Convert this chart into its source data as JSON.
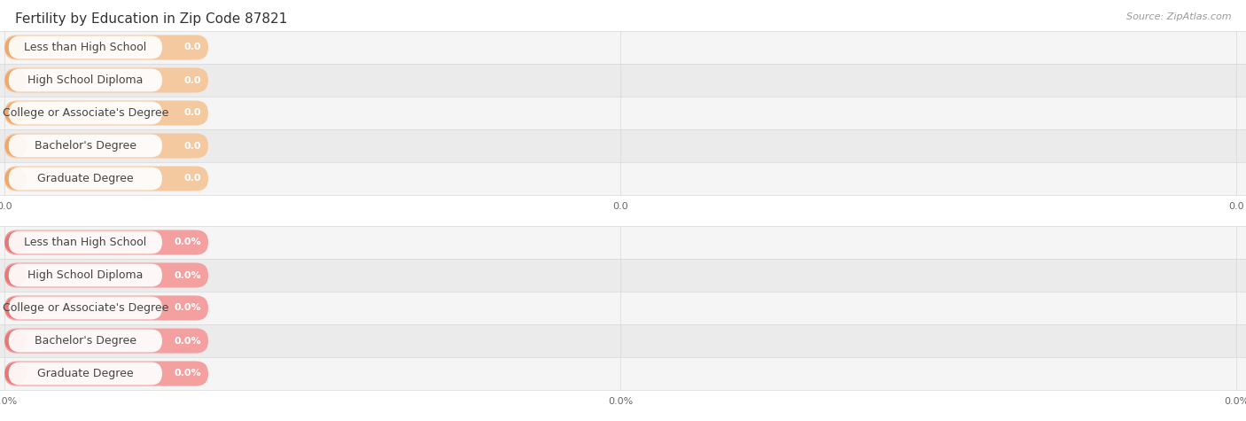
{
  "title": "Fertility by Education in Zip Code 87821",
  "source": "Source: ZipAtlas.com",
  "categories": [
    "Less than High School",
    "High School Diploma",
    "College or Associate's Degree",
    "Bachelor's Degree",
    "Graduate Degree"
  ],
  "top_values": [
    0.0,
    0.0,
    0.0,
    0.0,
    0.0
  ],
  "bottom_values": [
    0.0,
    0.0,
    0.0,
    0.0,
    0.0
  ],
  "top_bar_fill": "#f5c9a0",
  "top_bar_accent": "#f0a86a",
  "bottom_bar_fill": "#f5a0a0",
  "bottom_bar_accent": "#e87878",
  "top_value_suffix": "",
  "bottom_value_suffix": "%",
  "top_tick_labels": [
    "0.0",
    "0.0",
    "0.0"
  ],
  "bottom_tick_labels": [
    "0.0%",
    "0.0%",
    "0.0%"
  ],
  "bg_color": "#ffffff",
  "row_bg_even": "#f5f5f5",
  "row_bg_odd": "#ebebeb",
  "title_fontsize": 11,
  "label_fontsize": 9,
  "value_fontsize": 8,
  "tick_fontsize": 8,
  "source_fontsize": 8
}
